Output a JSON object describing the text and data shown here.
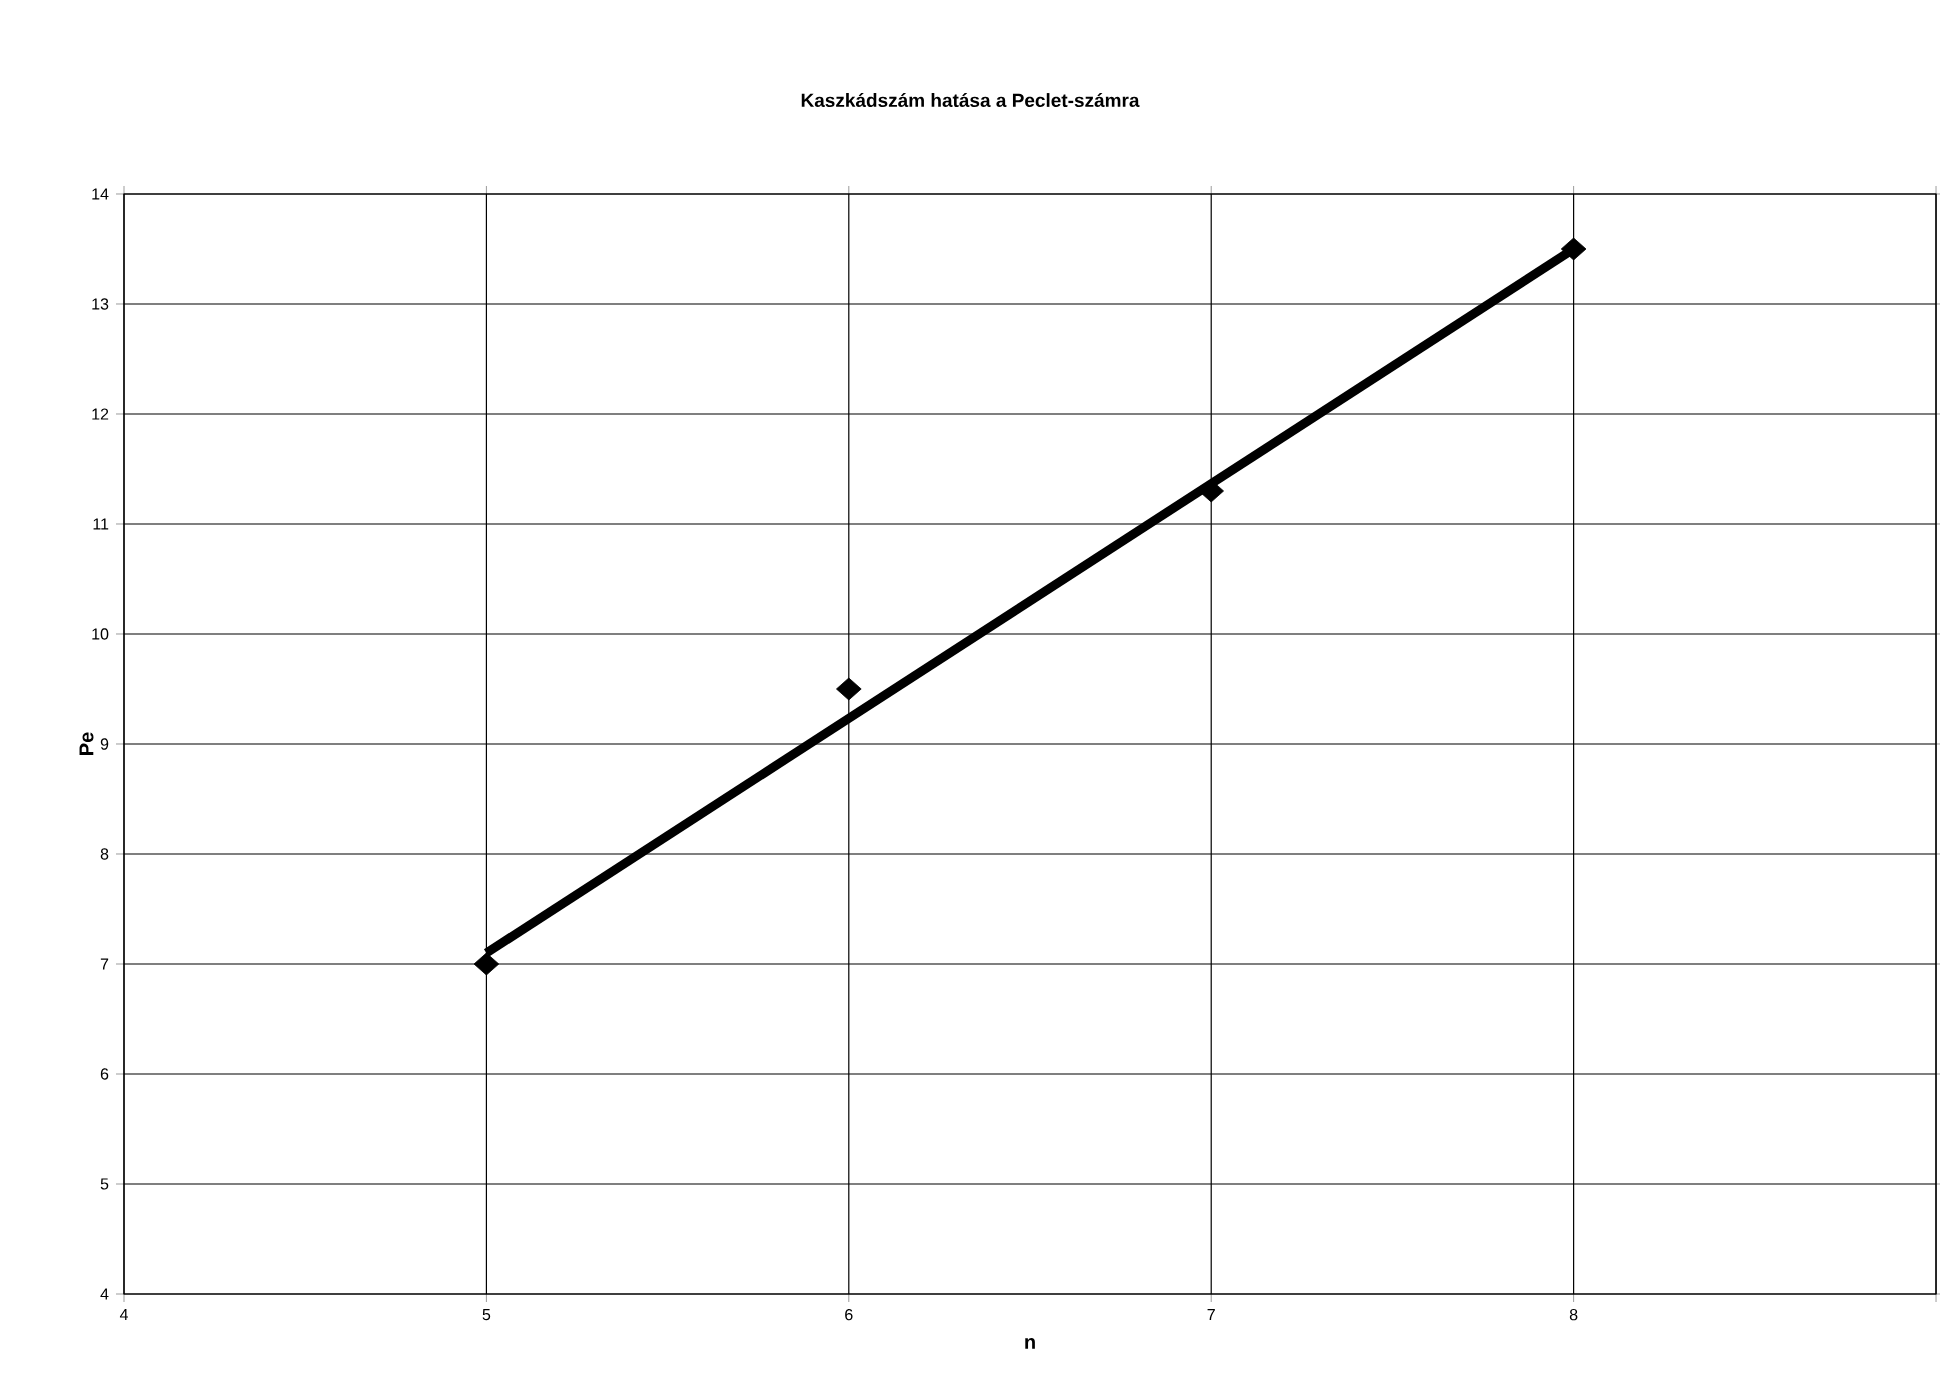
{
  "chart_data": {
    "type": "scatter",
    "title": "Kaszkádszám hatása a Peclet-számra",
    "xlabel": "n",
    "ylabel": "Pe",
    "xlim": [
      4,
      9
    ],
    "xticks": [
      4,
      5,
      6,
      7,
      8,
      {
        "value": 9,
        "label": null
      }
    ],
    "ylim": [
      4,
      14
    ],
    "yticks": [
      4,
      5,
      6,
      7,
      8,
      9,
      10,
      11,
      12,
      13,
      14
    ],
    "grid": true,
    "series": [
      {
        "color": "#000000",
        "marker": "diamond",
        "x": [
          5,
          6,
          7,
          8
        ],
        "values": [
          7,
          9.5,
          11.3,
          13.5
        ]
      },
      {
        "type": "line",
        "color": "#000000",
        "marker": "none",
        "line_style": "solid",
        "x": [
          5,
          8
        ],
        "values": [
          7.1,
          13.5
        ]
      }
    ]
  }
}
